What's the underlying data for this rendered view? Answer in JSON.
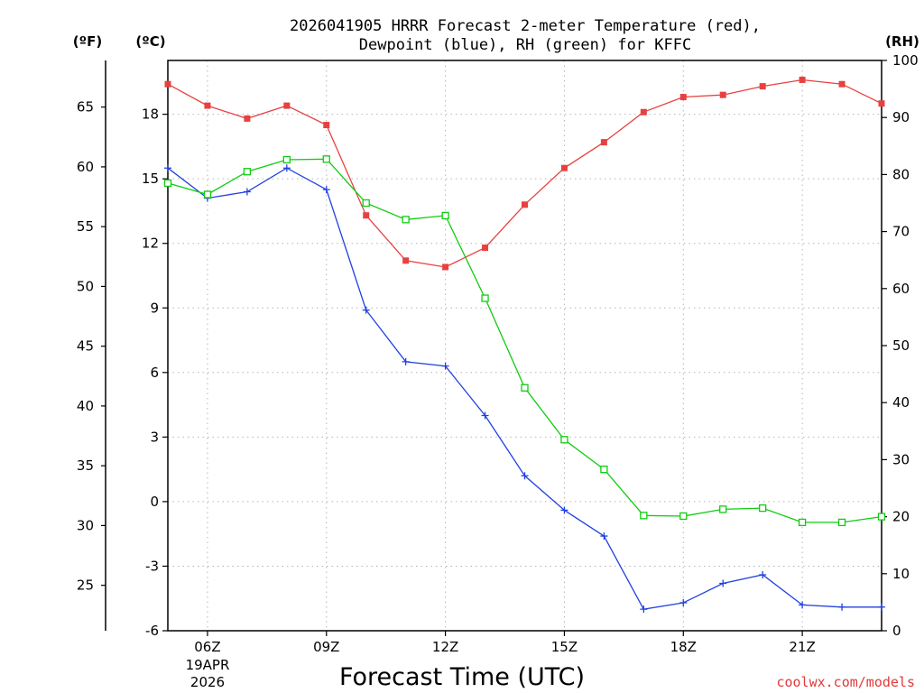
{
  "chart_data": {
    "type": "line",
    "title_line1": "2026041905 HRRR Forecast 2-meter Temperature (red),",
    "title_line2": "Dewpoint (blue), RH (green) for KFFC",
    "xlabel": "Forecast Time (UTC)",
    "credit": "coolwx.com/models",
    "unit_f": "(ºF)",
    "unit_c": "(ºC)",
    "unit_rh": "(RH)",
    "date_line1": "19APR",
    "date_line2": "2026",
    "x": [
      5,
      6,
      7,
      8,
      9,
      10,
      11,
      12,
      13,
      14,
      15,
      16,
      17,
      18,
      19,
      20,
      21,
      22,
      23
    ],
    "xlim": [
      5,
      23
    ],
    "x_ticks": [
      {
        "x": 6,
        "label": "06Z"
      },
      {
        "x": 9,
        "label": "09Z"
      },
      {
        "x": 12,
        "label": "12Z"
      },
      {
        "x": 15,
        "label": "15Z"
      },
      {
        "x": 18,
        "label": "18Z"
      },
      {
        "x": 21,
        "label": "21Z"
      }
    ],
    "ylim_c": [
      -6,
      20.5
    ],
    "yticks_c": [
      "-6",
      "-3",
      "0",
      "3",
      "6",
      "9",
      "12",
      "15",
      "18"
    ],
    "yticks_c_values": [
      -6,
      -3,
      0,
      3,
      6,
      9,
      12,
      15,
      18
    ],
    "yticks_f": [
      "25",
      "30",
      "35",
      "40",
      "45",
      "50",
      "55",
      "60",
      "65"
    ],
    "yticks_f_values": [
      25,
      30,
      35,
      40,
      45,
      50,
      55,
      60,
      65
    ],
    "ylim_rh": [
      0,
      100
    ],
    "yticks_rh": [
      "0",
      "10",
      "20",
      "30",
      "40",
      "50",
      "60",
      "70",
      "80",
      "90",
      "100"
    ],
    "yticks_rh_values": [
      0,
      10,
      20,
      30,
      40,
      50,
      60,
      70,
      80,
      90,
      100
    ],
    "series": [
      {
        "name": "Temperature",
        "axis": "celsius",
        "color": "#e84040",
        "marker": "filled-square",
        "values": [
          19.4,
          18.4,
          17.8,
          18.4,
          17.5,
          13.3,
          11.2,
          10.9,
          11.8,
          13.8,
          15.5,
          16.7,
          18.1,
          18.8,
          18.9,
          19.3,
          19.6,
          19.4,
          18.5
        ]
      },
      {
        "name": "Dewpoint",
        "axis": "celsius",
        "color": "#2040e0",
        "marker": "plus",
        "values": [
          15.5,
          14.1,
          14.4,
          15.5,
          14.5,
          8.9,
          6.5,
          6.3,
          4.0,
          1.2,
          -0.4,
          -1.6,
          -5.0,
          -4.7,
          -3.8,
          -3.4,
          -4.8,
          -4.9,
          -4.9
        ]
      },
      {
        "name": "RH",
        "axis": "rh",
        "color": "#10cc10",
        "marker": "open-square",
        "values": [
          78.5,
          76.5,
          80.5,
          82.6,
          82.7,
          75.0,
          72.1,
          72.8,
          58.3,
          42.6,
          33.5,
          28.3,
          20.2,
          20.1,
          21.3,
          21.5,
          19.0,
          19.0,
          20.0
        ]
      }
    ]
  }
}
